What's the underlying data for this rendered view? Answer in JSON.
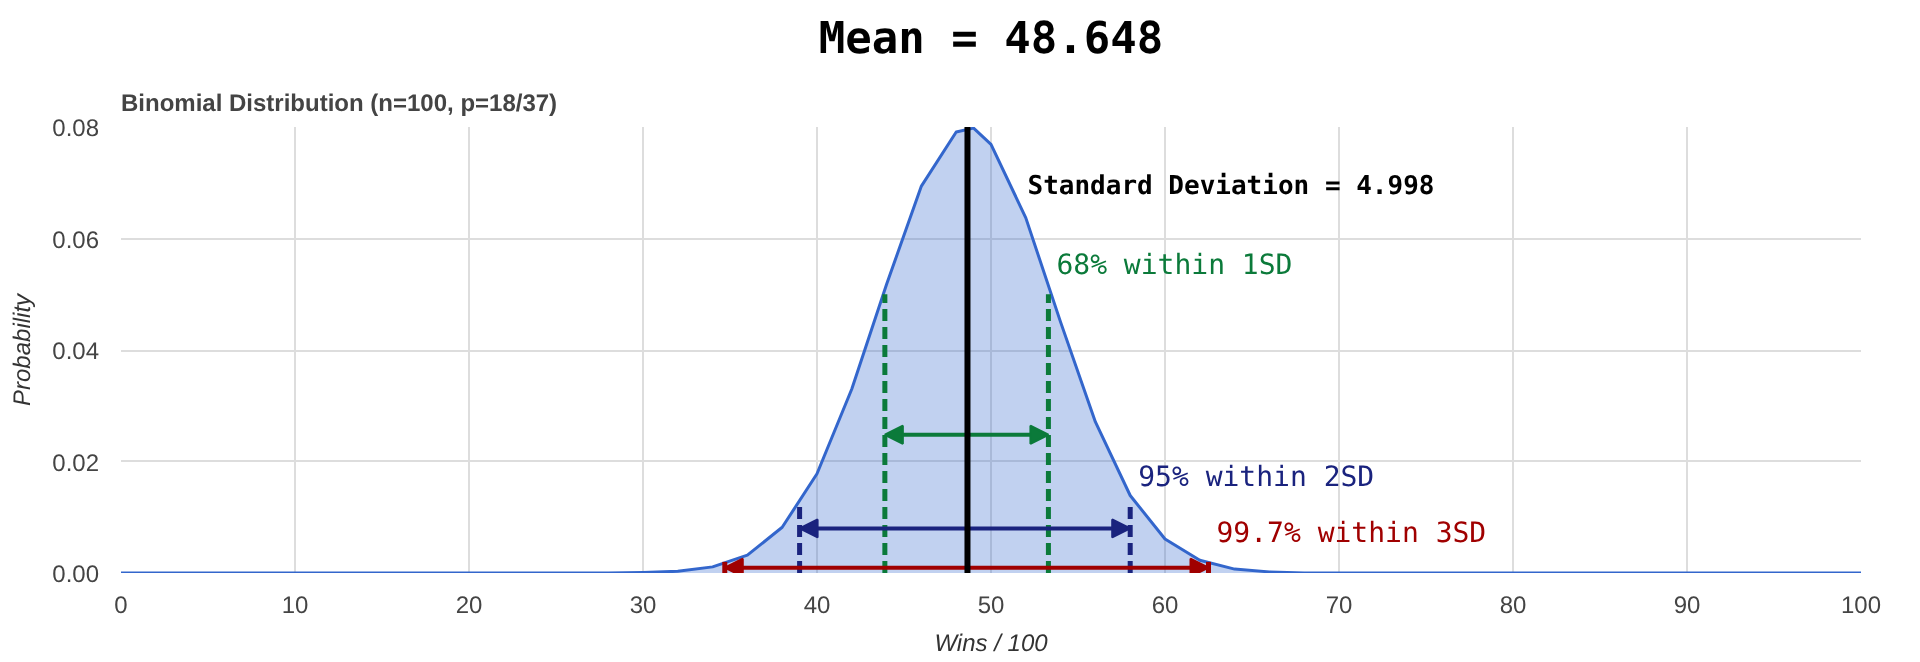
{
  "chart_data": {
    "type": "area",
    "title": "Binomial Distribution (n=100, p=18/37)",
    "xlabel": "Wins / 100",
    "ylabel": "Probability",
    "xlim": [
      0,
      100
    ],
    "xticks": [
      0,
      10,
      20,
      30,
      40,
      50,
      60,
      70,
      80,
      90,
      100
    ],
    "ylim": [
      0,
      0.08
    ],
    "yticks": [
      {
        "value": 0,
        "label": "0.00"
      },
      {
        "value": 0.02,
        "label": "0.02"
      },
      {
        "value": 0.04,
        "label": "0.04"
      },
      {
        "value": 0.06,
        "label": "0.06"
      },
      {
        "value": 0.08,
        "label": "0.08"
      }
    ],
    "grid": true,
    "series": [
      {
        "color": "#3366cc",
        "x": [
          0,
          28,
          30,
          32,
          34,
          36,
          38,
          40,
          42,
          44,
          46,
          48,
          49,
          50,
          52,
          54,
          56,
          58,
          60,
          62,
          64,
          66,
          68,
          70,
          100
        ],
        "values": [
          0,
          0,
          0.0001,
          0.0003,
          0.0011,
          0.0032,
          0.0082,
          0.0178,
          0.033,
          0.0518,
          0.0694,
          0.0791,
          0.0798,
          0.0769,
          0.0637,
          0.045,
          0.0271,
          0.0139,
          0.0061,
          0.0023,
          0.0007,
          0.0002,
          0,
          0,
          0
        ]
      },
      {
        "type": "line",
        "color": "#0b7a3a",
        "line_style": "dashed",
        "x": [
          43.9,
          43.9
        ],
        "values": [
          0,
          0.05
        ]
      },
      {
        "type": "line",
        "color": "#0b7a3a",
        "line_style": "dashed",
        "x": [
          53.3,
          53.3
        ],
        "values": [
          0,
          0.05
        ]
      },
      {
        "type": "line",
        "color": "#1a237e",
        "line_style": "dashed",
        "x": [
          39,
          39
        ],
        "values": [
          0,
          0.012
        ]
      },
      {
        "type": "line",
        "color": "#1a237e",
        "line_style": "dashed",
        "x": [
          58,
          58
        ],
        "values": [
          0,
          0.012
        ]
      },
      {
        "type": "line",
        "color": "#a00000",
        "line_style": "dashed",
        "x": [
          34.7,
          34.7
        ],
        "values": [
          0,
          0.002
        ]
      },
      {
        "type": "line",
        "color": "#a00000",
        "line_style": "dashed",
        "x": [
          62.5,
          62.5
        ],
        "values": [
          0,
          0.002
        ]
      }
    ],
    "ref_lines": [
      {
        "axis": "x",
        "value": 48.648,
        "label": "Mean = 48.648",
        "color": "#000000"
      }
    ],
    "annotations": [
      "Standard Deviation = 4.998",
      {
        "text": "68% within 1SD",
        "x": 53.3,
        "y": 0.05
      },
      {
        "text": "95% within 2SD",
        "x": 58,
        "y": 0.012
      },
      {
        "text": "99.7% within 3SD",
        "x": 62.5,
        "y": 0.002
      }
    ]
  }
}
